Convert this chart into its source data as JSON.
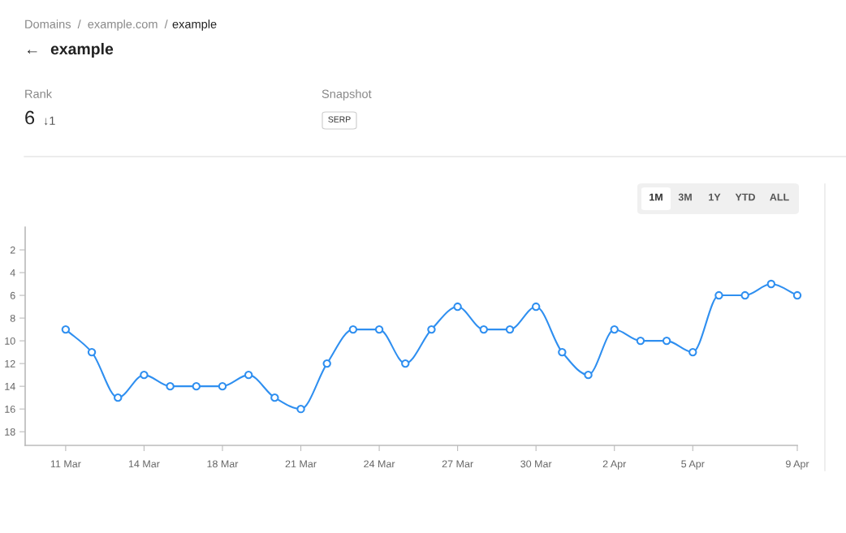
{
  "chart_data": {
    "type": "line",
    "title": "example",
    "annotations": [
      "Domains  /  example.com  /",
      "example",
      "←",
      "Rank",
      "6",
      "↓1",
      "Snapshot",
      "SERP",
      "1M",
      "3M",
      "1Y",
      "YTD",
      "ALL"
    ],
    "categories": [
      "11 Mar",
      null,
      null,
      "14 Mar",
      null,
      null,
      "18 Mar",
      null,
      null,
      "21 Mar",
      null,
      null,
      "24 Mar",
      null,
      null,
      "27 Mar",
      null,
      null,
      "30 Mar",
      null,
      null,
      "2 Apr",
      null,
      null,
      "5 Apr",
      null,
      null,
      null,
      "9 Apr"
    ],
    "series": [
      {
        "color": "#2f8ff0",
        "values": [
          9,
          11,
          15,
          13,
          14,
          14,
          14,
          13,
          15,
          16,
          12,
          9,
          9,
          12,
          9,
          7,
          9,
          9,
          7,
          11,
          13,
          9,
          10,
          10,
          11,
          6,
          6,
          5,
          6
        ]
      }
    ],
    "ylim": [
      19.2,
      0
    ],
    "yticks": [
      2,
      4,
      6,
      8,
      10,
      12,
      14,
      16,
      18
    ],
    "grid": false,
    "legend": false,
    "marker": "circle",
    "line_style": "solid"
  }
}
